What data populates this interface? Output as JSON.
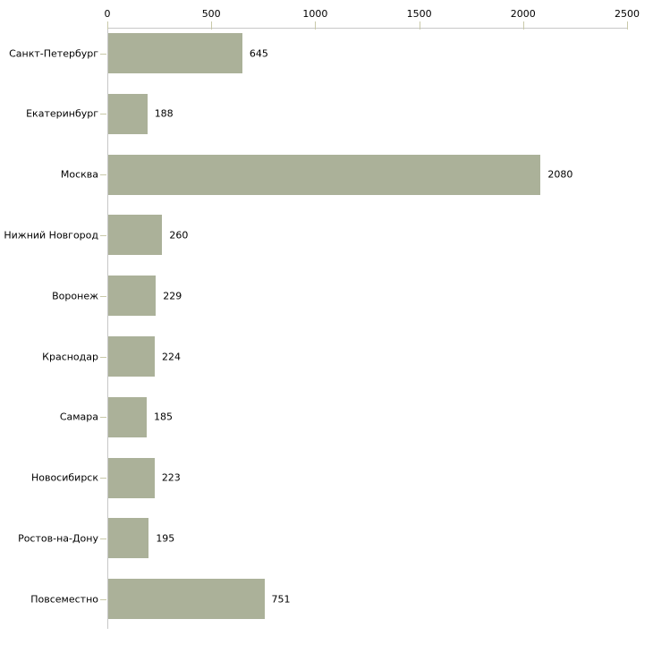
{
  "chart": {
    "background_color": "#ffffff",
    "bar_color": "#abb199",
    "axis_line_color": "#c8c8c8",
    "tick_mark_color": "#c9c9a9",
    "text_color": "#000000"
  },
  "chart_data": {
    "type": "bar",
    "orientation": "horizontal",
    "title": "",
    "xlabel": "",
    "ylabel": "",
    "categories": [
      "Санкт-Петербург",
      "Екатеринбург",
      "Москва",
      "Нижний Новгород",
      "Воронеж",
      "Краснодар",
      "Самара",
      "Новосибирск",
      "Ростов-на-Дону",
      "Повсеместно"
    ],
    "values": [
      645,
      188,
      2080,
      260,
      229,
      224,
      185,
      223,
      195,
      751
    ],
    "value_labels": [
      "645",
      "188",
      "2080",
      "260",
      "229",
      "224",
      "185",
      "223",
      "195",
      "751"
    ],
    "xlim": [
      0,
      2500
    ],
    "x_ticks": [
      0,
      500,
      1000,
      1500,
      2000,
      2500
    ],
    "x_tick_labels": [
      "0",
      "500",
      "1000",
      "1500",
      "2000",
      "2500"
    ],
    "grid": "off",
    "legend": "none",
    "value_labels_shown": true
  }
}
